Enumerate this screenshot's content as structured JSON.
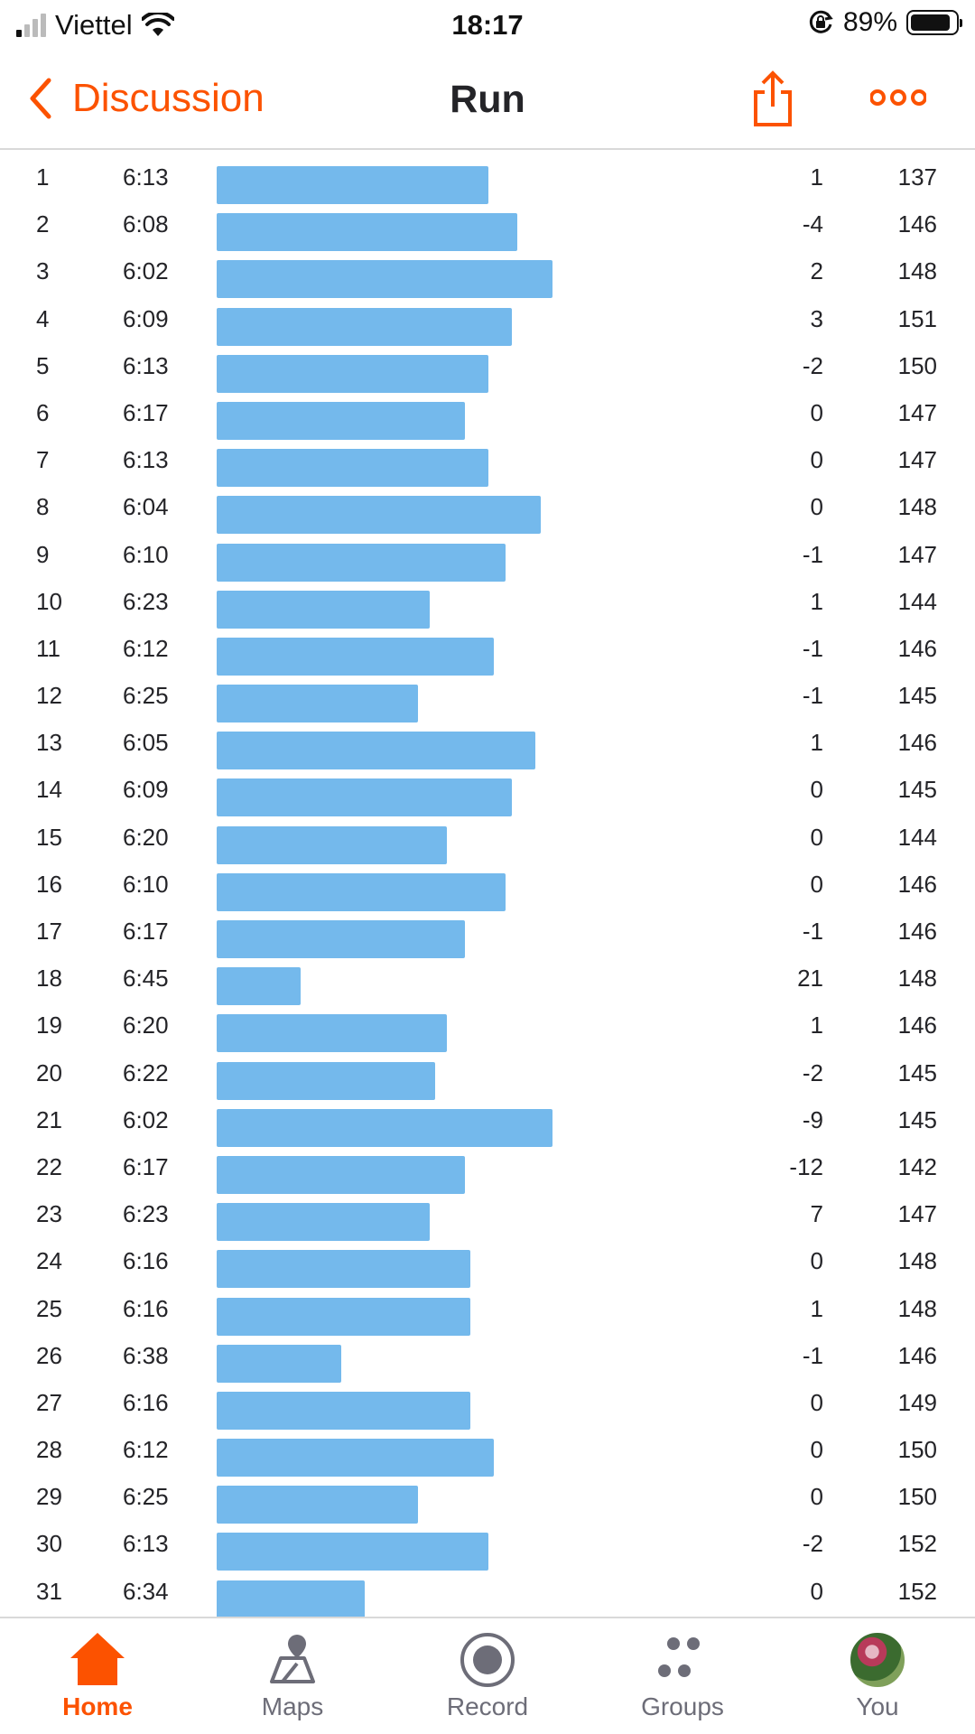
{
  "status": {
    "carrier": "Viettel",
    "time": "18:17",
    "battery": "89%",
    "battery_level": 0.89
  },
  "nav": {
    "back_label": "Discussion",
    "title": "Run"
  },
  "colors": {
    "accent": "#fc5200",
    "bar": "#74b9ec"
  },
  "splits": [
    {
      "km": "1",
      "pace": "6:13",
      "elev": "1",
      "hr": "137"
    },
    {
      "km": "2",
      "pace": "6:08",
      "elev": "-4",
      "hr": "146"
    },
    {
      "km": "3",
      "pace": "6:02",
      "elev": "2",
      "hr": "148"
    },
    {
      "km": "4",
      "pace": "6:09",
      "elev": "3",
      "hr": "151"
    },
    {
      "km": "5",
      "pace": "6:13",
      "elev": "-2",
      "hr": "150"
    },
    {
      "km": "6",
      "pace": "6:17",
      "elev": "0",
      "hr": "147"
    },
    {
      "km": "7",
      "pace": "6:13",
      "elev": "0",
      "hr": "147"
    },
    {
      "km": "8",
      "pace": "6:04",
      "elev": "0",
      "hr": "148"
    },
    {
      "km": "9",
      "pace": "6:10",
      "elev": "-1",
      "hr": "147"
    },
    {
      "km": "10",
      "pace": "6:23",
      "elev": "1",
      "hr": "144"
    },
    {
      "km": "11",
      "pace": "6:12",
      "elev": "-1",
      "hr": "146"
    },
    {
      "km": "12",
      "pace": "6:25",
      "elev": "-1",
      "hr": "145"
    },
    {
      "km": "13",
      "pace": "6:05",
      "elev": "1",
      "hr": "146"
    },
    {
      "km": "14",
      "pace": "6:09",
      "elev": "0",
      "hr": "145"
    },
    {
      "km": "15",
      "pace": "6:20",
      "elev": "0",
      "hr": "144"
    },
    {
      "km": "16",
      "pace": "6:10",
      "elev": "0",
      "hr": "146"
    },
    {
      "km": "17",
      "pace": "6:17",
      "elev": "-1",
      "hr": "146"
    },
    {
      "km": "18",
      "pace": "6:45",
      "elev": "21",
      "hr": "148"
    },
    {
      "km": "19",
      "pace": "6:20",
      "elev": "1",
      "hr": "146"
    },
    {
      "km": "20",
      "pace": "6:22",
      "elev": "-2",
      "hr": "145"
    },
    {
      "km": "21",
      "pace": "6:02",
      "elev": "-9",
      "hr": "145"
    },
    {
      "km": "22",
      "pace": "6:17",
      "elev": "-12",
      "hr": "142"
    },
    {
      "km": "23",
      "pace": "6:23",
      "elev": "7",
      "hr": "147"
    },
    {
      "km": "24",
      "pace": "6:16",
      "elev": "0",
      "hr": "148"
    },
    {
      "km": "25",
      "pace": "6:16",
      "elev": "1",
      "hr": "148"
    },
    {
      "km": "26",
      "pace": "6:38",
      "elev": "-1",
      "hr": "146"
    },
    {
      "km": "27",
      "pace": "6:16",
      "elev": "0",
      "hr": "149"
    },
    {
      "km": "28",
      "pace": "6:12",
      "elev": "0",
      "hr": "150"
    },
    {
      "km": "29",
      "pace": "6:25",
      "elev": "0",
      "hr": "150"
    },
    {
      "km": "30",
      "pace": "6:13",
      "elev": "-2",
      "hr": "152"
    },
    {
      "km": "31",
      "pace": "6:34",
      "elev": "0",
      "hr": "152"
    }
  ],
  "tabs": [
    {
      "label": "Home",
      "icon": "home-icon",
      "active": true
    },
    {
      "label": "Maps",
      "icon": "maps-icon",
      "active": false
    },
    {
      "label": "Record",
      "icon": "record-icon",
      "active": false
    },
    {
      "label": "Groups",
      "icon": "groups-icon",
      "active": false
    },
    {
      "label": "You",
      "icon": "avatar",
      "active": false
    }
  ]
}
